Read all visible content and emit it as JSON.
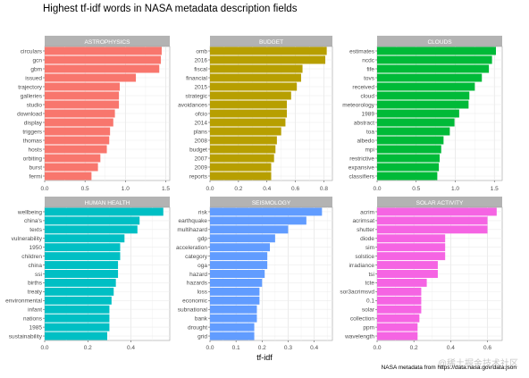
{
  "chart_title": "Highest tf-idf words in NASA metadata description fields",
  "x_axis_label": "tf-idf",
  "caption": "NASA metadata from https://data.nasa.gov/data.json",
  "watermark": "@稀土掘金技术社区",
  "chart_data": [
    {
      "type": "bar",
      "panel": "ASTROPHYSICS",
      "color": "#F8766D",
      "xlim": [
        0,
        1.55
      ],
      "xticks": [
        0,
        0.5,
        1.0,
        1.5
      ],
      "xtick_labels": [
        "0.0",
        "0.5",
        "1.0",
        "1.5"
      ],
      "categories": [
        "circulars",
        "gcn",
        "gbm",
        "issued",
        "trajectory",
        "galleries",
        "studio",
        "download",
        "display",
        "triggers",
        "thomas",
        "hosts",
        "orbiting",
        "burst",
        "fermi"
      ],
      "values": [
        1.45,
        1.44,
        1.42,
        1.13,
        0.93,
        0.92,
        0.92,
        0.87,
        0.85,
        0.81,
        0.8,
        0.77,
        0.69,
        0.66,
        0.58
      ]
    },
    {
      "type": "bar",
      "panel": "BUDGET",
      "color": "#B79F00",
      "xlim": [
        0,
        0.86
      ],
      "xticks": [
        0,
        0.2,
        0.4,
        0.6,
        0.8
      ],
      "xtick_labels": [
        "0.0",
        "0.2",
        "0.4",
        "0.6",
        "0.8"
      ],
      "categories": [
        "omb",
        "2016",
        "fiscal",
        "financial",
        "2015",
        "strategic",
        "avoidances",
        "ofcio",
        "2014",
        "plans",
        "2008",
        "budget",
        "2007",
        "2009",
        "reports"
      ],
      "values": [
        0.82,
        0.81,
        0.65,
        0.64,
        0.61,
        0.57,
        0.54,
        0.54,
        0.53,
        0.5,
        0.47,
        0.46,
        0.45,
        0.43,
        0.43
      ]
    },
    {
      "type": "bar",
      "panel": "CLOUDS",
      "color": "#00BA38",
      "xlim": [
        0,
        1.6
      ],
      "xticks": [
        0,
        0.5,
        1.0,
        1.5
      ],
      "xtick_labels": [
        "0.0",
        "0.5",
        "1.0",
        "1.5"
      ],
      "categories": [
        "estimates",
        "ncdc",
        "fife",
        "tovs",
        "received",
        "cloud",
        "meteorology",
        "1989",
        "abstract",
        "toa",
        "albedo",
        "mpi",
        "restrictive",
        "expansive",
        "classifiers"
      ],
      "values": [
        1.52,
        1.47,
        1.43,
        1.34,
        1.25,
        1.18,
        1.17,
        1.05,
        0.99,
        0.93,
        0.85,
        0.82,
        0.8,
        0.79,
        0.77
      ]
    },
    {
      "type": "bar",
      "panel": "HUMAN HEALTH",
      "color": "#00BFC4",
      "xlim": [
        0,
        0.58
      ],
      "xticks": [
        0,
        0.2,
        0.4
      ],
      "xtick_labels": [
        "0.0",
        "0.2",
        "0.4"
      ],
      "categories": [
        "wellbeing",
        "china's",
        "texts",
        "vulnerability",
        "1950",
        "children",
        "china",
        "ssi",
        "births",
        "treaty",
        "environmental",
        "infant",
        "nations",
        "1985",
        "sustainability"
      ],
      "values": [
        0.55,
        0.44,
        0.43,
        0.37,
        0.35,
        0.35,
        0.34,
        0.34,
        0.33,
        0.32,
        0.31,
        0.3,
        0.3,
        0.3,
        0.29
      ]
    },
    {
      "type": "bar",
      "panel": "SEISMOLOGY",
      "color": "#619CFF",
      "xlim": [
        0,
        0.47
      ],
      "xticks": [
        0,
        0.1,
        0.2,
        0.3,
        0.4
      ],
      "xtick_labels": [
        "0.0",
        "0.1",
        "0.2",
        "0.3",
        "0.4"
      ],
      "categories": [
        "risk",
        "earthquake",
        "multihazard",
        "gdp",
        "acceleration",
        "category",
        "oga",
        "hazard",
        "hazards",
        "loss",
        "economic",
        "subnational",
        "bank",
        "drought",
        "grid"
      ],
      "values": [
        0.43,
        0.37,
        0.3,
        0.25,
        0.23,
        0.22,
        0.22,
        0.21,
        0.2,
        0.19,
        0.19,
        0.18,
        0.18,
        0.17,
        0.17
      ]
    },
    {
      "type": "bar",
      "panel": "SOLAR ACTIVITY",
      "color": "#F564E3",
      "xlim": [
        0,
        0.68
      ],
      "xticks": [
        0,
        0.2,
        0.4,
        0.6
      ],
      "xtick_labels": [
        "0.0",
        "0.2",
        "0.4",
        "0.6"
      ],
      "categories": [
        "acrim",
        "acrimsat",
        "shutter",
        "diode",
        "sim",
        "solstice",
        "irradiance",
        "tsi",
        "tcte",
        "sor3acrimsvd",
        "0.1",
        "solar",
        "collection",
        "ppm",
        "wavelength"
      ],
      "values": [
        0.65,
        0.6,
        0.6,
        0.37,
        0.37,
        0.37,
        0.33,
        0.33,
        0.27,
        0.24,
        0.24,
        0.24,
        0.23,
        0.22,
        0.22
      ]
    }
  ]
}
